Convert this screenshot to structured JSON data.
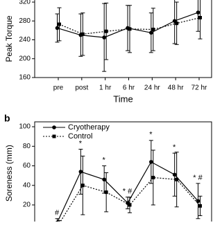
{
  "chart_data": [
    {
      "type": "line",
      "ylabel": "Peak Torque",
      "xlabel": "Time",
      "categories": [
        "pre",
        "post",
        "1 hr",
        "6 hr",
        "24 hr",
        "48 hr",
        "72 hr"
      ],
      "ylim": [
        160,
        340
      ],
      "yticks": [
        160,
        200,
        240,
        280,
        320
      ],
      "series": [
        {
          "color": "#000000",
          "line_style": "solid",
          "marker": "circle",
          "values": [
            265,
            250,
            245,
            265,
            255,
            280,
            298
          ],
          "errors": [
            30,
            45,
            72,
            48,
            42,
            48,
            40
          ]
        },
        {
          "color": "#000000",
          "line_style": "dotted",
          "marker": "square",
          "values": [
            273,
            252,
            258,
            263,
            262,
            275,
            287
          ],
          "errors": [
            35,
            45,
            60,
            50,
            45,
            45,
            45
          ]
        }
      ]
    },
    {
      "type": "line",
      "panel": "b",
      "ylabel": "Soreness (mm)",
      "ylim": [
        0,
        105
      ],
      "yticks": [
        20,
        40,
        60,
        80,
        100
      ],
      "legend": "upper left",
      "annotations": [
        "#",
        "*",
        "*",
        "* #",
        "*",
        "*",
        "* #"
      ],
      "series": [
        {
          "name": "Cryotherapy",
          "color": "#000000",
          "line_style": "solid",
          "marker": "circle",
          "values": [
            2,
            54,
            46,
            22,
            64,
            51,
            24
          ],
          "errors": [
            4,
            23,
            14,
            6,
            22,
            22,
            18
          ]
        },
        {
          "name": "Control",
          "color": "#000000",
          "line_style": "dotted",
          "marker": "square",
          "values": [
            1,
            40,
            33,
            20,
            48,
            46,
            19
          ],
          "errors": [
            3,
            30,
            20,
            8,
            28,
            28,
            10
          ]
        }
      ]
    }
  ]
}
